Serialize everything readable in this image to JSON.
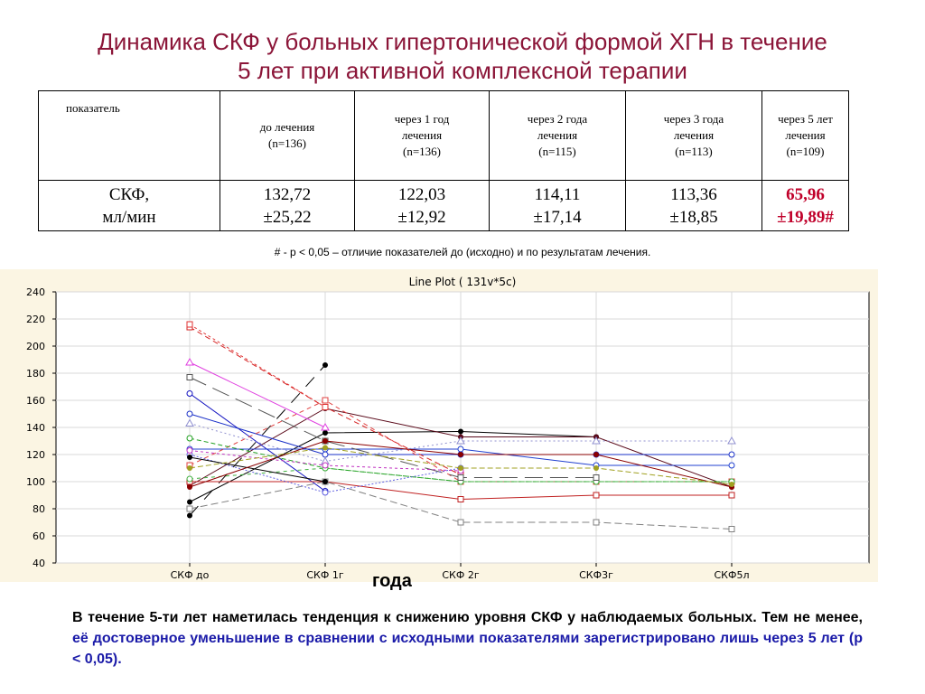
{
  "slide": {
    "title_line1": "Динамика СКФ у больных гипертонической формой ХГН в течение",
    "title_line2": "5 лет при активной комплексной терапии"
  },
  "table": {
    "headers": [
      {
        "line1": "показатель",
        "line2": "",
        "line3": ""
      },
      {
        "line1": "до лечения",
        "line2": "(n=136)",
        "line3": ""
      },
      {
        "line1": "через 1 год",
        "line2": "лечения",
        "line3": "(n=136)"
      },
      {
        "line1": "через 2 года",
        "line2": "лечения",
        "line3": "(n=115)"
      },
      {
        "line1": "через 3 года",
        "line2": "лечения",
        "line3": "(n=113)"
      },
      {
        "line1": "через 5 лет",
        "line2": "лечения",
        "line3": "(n=109)"
      }
    ],
    "row": [
      {
        "line1": "СКФ,",
        "line2": "мл/мин"
      },
      {
        "line1": "132,72",
        "line2": "±25,22"
      },
      {
        "line1": "122,03",
        "line2": "±12,92"
      },
      {
        "line1": "114,11",
        "line2": "±17,14"
      },
      {
        "line1": "113,36",
        "line2": "±18,85"
      },
      {
        "line1": "65,96",
        "line2": "±19,89#"
      }
    ],
    "highlight_color": "#c0002a"
  },
  "footnote": "# - р < 0,05 – отличие показателей до (исходно) и по результатам лечения.",
  "chart_data": {
    "type": "line",
    "title": "Line Plot ( 131v*5c)",
    "categories": [
      "СКФ до",
      "СКФ 1г",
      "СКФ 2г",
      "СКФ3г",
      "СКФ5л"
    ],
    "ylim": [
      40,
      240
    ],
    "yticks": [
      40,
      60,
      80,
      100,
      120,
      140,
      160,
      180,
      200,
      220,
      240
    ],
    "grid": true,
    "xlabel": "года",
    "series": [
      {
        "values": [
          75,
          186,
          null,
          null,
          null
        ],
        "color": "#000000",
        "dash": "14,10",
        "marker": "dot"
      },
      {
        "values": [
          85,
          136,
          137,
          133,
          null
        ],
        "color": "#000000",
        "dash": "",
        "marker": "dot"
      },
      {
        "values": [
          97,
          154,
          133,
          133,
          96
        ],
        "color": "#5a0a1a",
        "dash": "",
        "marker": "dot"
      },
      {
        "values": [
          165,
          93,
          null,
          null,
          null
        ],
        "color": "#1010c0",
        "dash": "",
        "marker": "circle"
      },
      {
        "values": [
          150,
          120,
          120,
          120,
          120
        ],
        "color": "#1a30c8",
        "dash": "",
        "marker": "circle"
      },
      {
        "values": [
          124,
          124,
          124,
          112,
          112
        ],
        "color": "#2040d0",
        "dash": "",
        "marker": "circle"
      },
      {
        "values": [
          214,
          155,
          105,
          null,
          null
        ],
        "color": "#d42020",
        "dash": "6,4",
        "marker": "square"
      },
      {
        "values": [
          216,
          155,
          null,
          null,
          null
        ],
        "color": "#e03030",
        "dash": "3,3",
        "marker": "square"
      },
      {
        "values": [
          112,
          160,
          100,
          100,
          100
        ],
        "color": "#e04040",
        "dash": "5,4",
        "marker": "square"
      },
      {
        "values": [
          100,
          100,
          87,
          90,
          90
        ],
        "color": "#c02020",
        "dash": "",
        "marker": "square"
      },
      {
        "values": [
          188,
          140,
          null,
          null,
          null
        ],
        "color": "#e040e0",
        "dash": "",
        "marker": "triangle"
      },
      {
        "values": [
          143,
          115,
          130,
          130,
          130
        ],
        "color": "#9090d0",
        "dash": "2,3",
        "marker": "triangle"
      },
      {
        "values": [
          132,
          110,
          100,
          100,
          100
        ],
        "color": "#20a020",
        "dash": "5,3",
        "marker": "circle"
      },
      {
        "values": [
          102,
          110,
          100,
          100,
          100
        ],
        "color": "#40b040",
        "dash": "4,4",
        "marker": "circle"
      },
      {
        "values": [
          177,
          130,
          103,
          103,
          null
        ],
        "color": "#555555",
        "dash": "20,8",
        "marker": "square"
      },
      {
        "values": [
          80,
          100,
          70,
          70,
          65
        ],
        "color": "#808080",
        "dash": "8,4",
        "marker": "square"
      },
      {
        "values": [
          120,
          92,
          110,
          null,
          null
        ],
        "color": "#6060e0",
        "dash": "2,2",
        "marker": "circle"
      },
      {
        "values": [
          118,
          100,
          null,
          null,
          null
        ],
        "color": "#000000",
        "dash": "",
        "marker": "dot"
      },
      {
        "values": [
          123,
          112,
          108,
          null,
          null
        ],
        "color": "#c030c0",
        "dash": "3,3",
        "marker": "circle"
      },
      {
        "values": [
          96,
          130,
          120,
          120,
          96
        ],
        "color": "#8b0000",
        "dash": "",
        "marker": "dot"
      },
      {
        "values": [
          110,
          125,
          110,
          110,
          98
        ],
        "color": "#a0a020",
        "dash": "6,3",
        "marker": "dot"
      }
    ]
  },
  "conclusion": {
    "part1": "В течение 5-ти лет наметилась тенденция к снижению уровня СКФ у наблюдаемых больных. Тем не менее, ",
    "part2": "её достоверное уменьшение в сравнении с исходными",
    "part3": "показателями зарегистрировано лишь через 5 лет (р < 0,05)."
  }
}
